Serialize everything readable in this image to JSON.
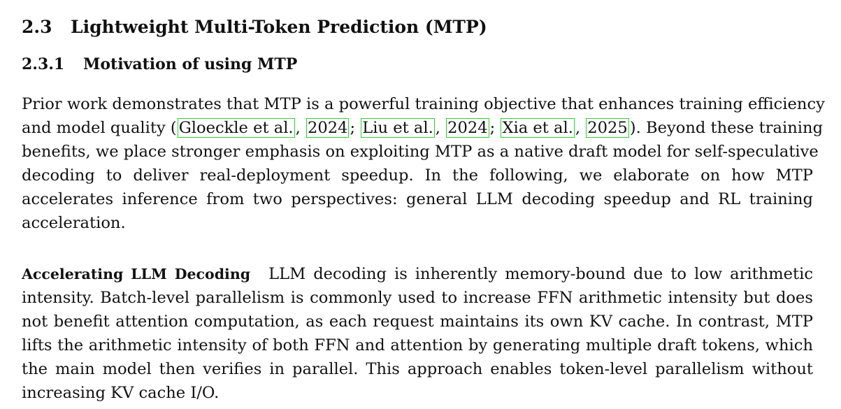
{
  "section": {
    "number": "2.3",
    "title": "Lightweight Multi-Token Prediction (MTP)"
  },
  "subsection": {
    "number": "2.3.1",
    "title": "Motivation of using MTP"
  },
  "paragraph1": {
    "line1": "Prior work demonstrates that MTP is a powerful training objective that enhances training efficiency",
    "line2_pre": "and model quality (",
    "cite1_author": "Gloeckle et al.",
    "cite1_year": "2024",
    "cite2_author": "Liu et al.",
    "cite2_year": "2024",
    "cite3_author": "Xia et al.",
    "cite3_year": "2025",
    "line2_post": "). Beyond these training",
    "line3": "benefits, we place stronger emphasis on exploiting MTP as a native draft model for self-speculative",
    "line4": "decoding to deliver real-deployment speedup. In the following, we elaborate on how MTP",
    "line5": "accelerates inference from two perspectives: general LLM decoding speedup and RL training",
    "line6": "acceleration."
  },
  "paragraph2": {
    "heading": "Accelerating LLM Decoding",
    "line1": "LLM decoding is inherently memory-bound due to low arithmetic",
    "line2": "intensity. Batch-level parallelism is commonly used to increase FFN arithmetic intensity but does",
    "line3": "not benefit attention computation, as each request maintains its own KV cache. In contrast, MTP",
    "line4": "lifts the arithmetic intensity of both FFN and attention by generating multiple draft tokens, which",
    "line5": "the main model then verifies in parallel. This approach enables token-level parallelism without",
    "line6": "increasing KV cache I/O."
  },
  "colors": {
    "citation_box": "#2fd12f",
    "text": "#111111",
    "background": "#ffffff"
  }
}
